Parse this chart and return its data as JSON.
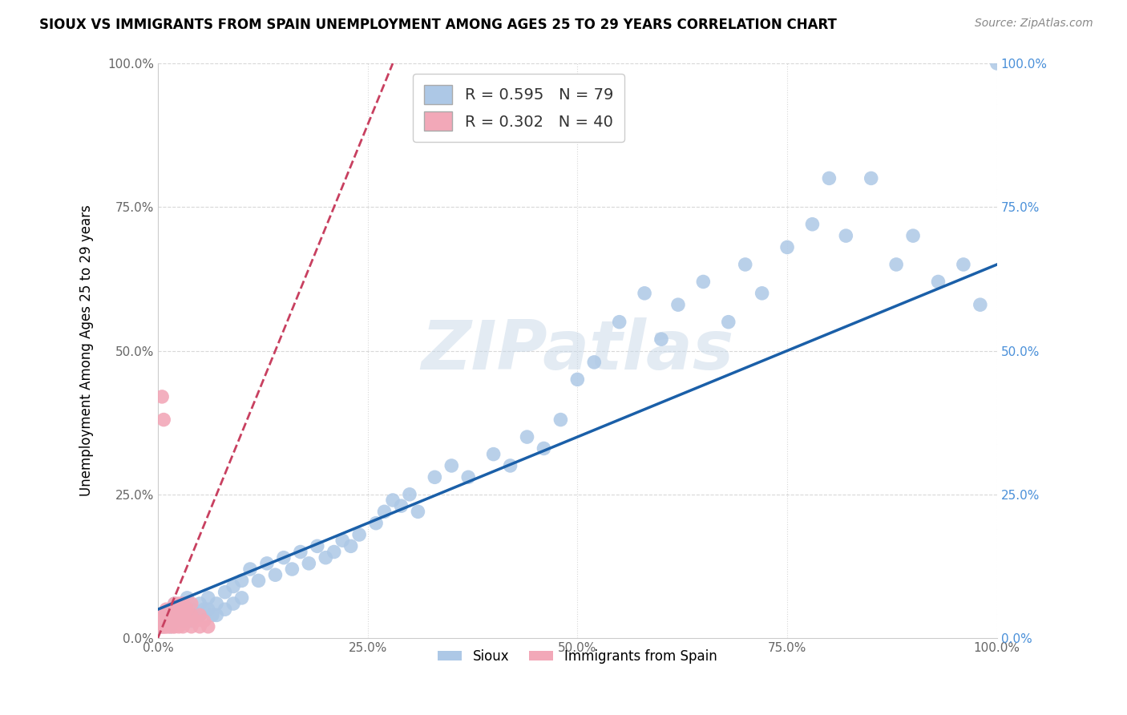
{
  "title": "SIOUX VS IMMIGRANTS FROM SPAIN UNEMPLOYMENT AMONG AGES 25 TO 29 YEARS CORRELATION CHART",
  "source": "Source: ZipAtlas.com",
  "ylabel": "Unemployment Among Ages 25 to 29 years",
  "xlim": [
    0,
    1.0
  ],
  "ylim": [
    0,
    1.0
  ],
  "xticks": [
    0.0,
    0.25,
    0.5,
    0.75,
    1.0
  ],
  "yticks": [
    0.0,
    0.25,
    0.5,
    0.75,
    1.0
  ],
  "tick_labels": [
    "0.0%",
    "25.0%",
    "50.0%",
    "75.0%",
    "100.0%"
  ],
  "sioux_color": "#adc8e6",
  "spain_color": "#f2a8b8",
  "sioux_R": 0.595,
  "sioux_N": 79,
  "spain_R": 0.302,
  "spain_N": 40,
  "sioux_line_color": "#1a5fa8",
  "spain_line_color": "#c84060",
  "watermark_text": "ZIPatlas",
  "blue_tick_color": "#4a90d9",
  "background_color": "#ffffff",
  "grid_color": "#d8d8d8",
  "sioux_x": [
    0.005,
    0.01,
    0.01,
    0.015,
    0.015,
    0.02,
    0.02,
    0.025,
    0.025,
    0.03,
    0.03,
    0.035,
    0.035,
    0.04,
    0.04,
    0.045,
    0.05,
    0.05,
    0.055,
    0.06,
    0.06,
    0.065,
    0.07,
    0.07,
    0.08,
    0.08,
    0.09,
    0.09,
    0.1,
    0.1,
    0.11,
    0.12,
    0.13,
    0.14,
    0.15,
    0.16,
    0.17,
    0.18,
    0.19,
    0.2,
    0.21,
    0.22,
    0.23,
    0.24,
    0.26,
    0.27,
    0.28,
    0.29,
    0.3,
    0.31,
    0.33,
    0.35,
    0.37,
    0.4,
    0.42,
    0.44,
    0.46,
    0.48,
    0.5,
    0.52,
    0.55,
    0.58,
    0.6,
    0.62,
    0.65,
    0.68,
    0.7,
    0.72,
    0.75,
    0.78,
    0.8,
    0.82,
    0.85,
    0.88,
    0.9,
    0.93,
    0.96,
    0.98,
    1.0
  ],
  "sioux_y": [
    0.02,
    0.03,
    0.04,
    0.02,
    0.05,
    0.03,
    0.06,
    0.04,
    0.05,
    0.03,
    0.06,
    0.04,
    0.07,
    0.05,
    0.03,
    0.04,
    0.06,
    0.04,
    0.05,
    0.07,
    0.05,
    0.04,
    0.06,
    0.04,
    0.08,
    0.05,
    0.09,
    0.06,
    0.1,
    0.07,
    0.12,
    0.1,
    0.13,
    0.11,
    0.14,
    0.12,
    0.15,
    0.13,
    0.16,
    0.14,
    0.15,
    0.17,
    0.16,
    0.18,
    0.2,
    0.22,
    0.24,
    0.23,
    0.25,
    0.22,
    0.28,
    0.3,
    0.28,
    0.32,
    0.3,
    0.35,
    0.33,
    0.38,
    0.45,
    0.48,
    0.55,
    0.6,
    0.52,
    0.58,
    0.62,
    0.55,
    0.65,
    0.6,
    0.68,
    0.72,
    0.8,
    0.7,
    0.8,
    0.65,
    0.7,
    0.62,
    0.65,
    0.58,
    1.0
  ],
  "spain_x": [
    0.005,
    0.005,
    0.005,
    0.007,
    0.007,
    0.008,
    0.008,
    0.01,
    0.01,
    0.01,
    0.012,
    0.012,
    0.015,
    0.015,
    0.015,
    0.018,
    0.018,
    0.02,
    0.02,
    0.02,
    0.022,
    0.025,
    0.025,
    0.025,
    0.028,
    0.03,
    0.03,
    0.03,
    0.035,
    0.035,
    0.04,
    0.04,
    0.04,
    0.045,
    0.05,
    0.05,
    0.055,
    0.06,
    0.005,
    0.007
  ],
  "spain_y": [
    0.02,
    0.03,
    0.04,
    0.02,
    0.03,
    0.02,
    0.04,
    0.02,
    0.03,
    0.05,
    0.02,
    0.04,
    0.02,
    0.03,
    0.05,
    0.02,
    0.04,
    0.02,
    0.03,
    0.06,
    0.03,
    0.02,
    0.04,
    0.06,
    0.03,
    0.02,
    0.04,
    0.06,
    0.03,
    0.05,
    0.02,
    0.04,
    0.06,
    0.03,
    0.02,
    0.04,
    0.03,
    0.02,
    0.42,
    0.38
  ],
  "spain_line_x": [
    0.0,
    0.28
  ],
  "spain_line_y": [
    0.0,
    1.0
  ],
  "sioux_line_x": [
    0.0,
    1.0
  ],
  "sioux_line_y": [
    0.05,
    0.65
  ]
}
